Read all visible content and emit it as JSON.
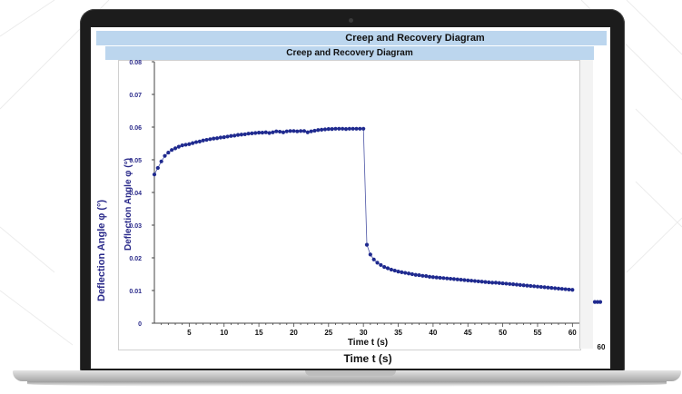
{
  "window_outer": {
    "title": "Creep and Recovery Diagram",
    "ylabel": "Deflection  Angle φ (°)",
    "xlabel": "Time t (s)",
    "xtick_visible": "60"
  },
  "window_inner": {
    "title": "Creep and Recovery Diagram",
    "ylabel": "Deflection  Angle φ (°)",
    "xlabel": "Time t (s)"
  },
  "chart_data": {
    "type": "scatter",
    "title": "Creep and Recovery Diagram",
    "xlabel": "Time t (s)",
    "ylabel": "Deflection  Angle φ (°)",
    "xlim": [
      0,
      61
    ],
    "ylim": [
      0,
      0.08
    ],
    "xticks": [
      5,
      10,
      15,
      20,
      25,
      30,
      35,
      40,
      45,
      50,
      55,
      60
    ],
    "yticks": [
      "0",
      "0.01",
      "0.02",
      "0.03",
      "0.04",
      "0.05",
      "0.06",
      "0.07",
      "0.08"
    ],
    "marker_color": "#1f2a8f",
    "series": [
      {
        "x": [
          0.0,
          0.5,
          1.0,
          1.5,
          2.0,
          2.5,
          3.0,
          3.5,
          4.0,
          4.5,
          5.0,
          5.5,
          6.0,
          6.5,
          7.0,
          7.5,
          8.0,
          8.5,
          9.0,
          9.5,
          10.0,
          10.5,
          11.0,
          11.5,
          12.0,
          12.5,
          13.0,
          13.5,
          14.0,
          14.5,
          15.0,
          15.5,
          16.0,
          16.5,
          17.0,
          17.5,
          18.0,
          18.5,
          19.0,
          19.5,
          20.0,
          20.5,
          21.0,
          21.5,
          22.0,
          22.5,
          23.0,
          23.5,
          24.0,
          24.5,
          25.0,
          25.5,
          26.0,
          26.5,
          27.0,
          27.5,
          28.0,
          28.5,
          29.0,
          29.5,
          30.0,
          30.5,
          31.0,
          31.5,
          32.0,
          32.5,
          33.0,
          33.5,
          34.0,
          34.5,
          35.0,
          35.5,
          36.0,
          36.5,
          37.0,
          37.5,
          38.0,
          38.5,
          39.0,
          39.5,
          40.0,
          40.5,
          41.0,
          41.5,
          42.0,
          42.5,
          43.0,
          43.5,
          44.0,
          44.5,
          45.0,
          45.5,
          46.0,
          46.5,
          47.0,
          47.5,
          48.0,
          48.5,
          49.0,
          49.5,
          50.0,
          50.5,
          51.0,
          51.5,
          52.0,
          52.5,
          53.0,
          53.5,
          54.0,
          54.5,
          55.0,
          55.5,
          56.0,
          56.5,
          57.0,
          57.5,
          58.0,
          58.5,
          59.0,
          59.5,
          60.0
        ],
        "y": [
          0.0455,
          0.0475,
          0.0495,
          0.0512,
          0.0522,
          0.053,
          0.0535,
          0.054,
          0.0544,
          0.0546,
          0.0548,
          0.0551,
          0.0554,
          0.0556,
          0.0559,
          0.0561,
          0.0563,
          0.0565,
          0.0566,
          0.0568,
          0.0569,
          0.0571,
          0.0573,
          0.0574,
          0.0576,
          0.0577,
          0.0578,
          0.058,
          0.0581,
          0.0582,
          0.0583,
          0.0583,
          0.0584,
          0.0582,
          0.0584,
          0.0587,
          0.0586,
          0.0584,
          0.0587,
          0.0588,
          0.0588,
          0.0587,
          0.0588,
          0.0588,
          0.0584,
          0.0587,
          0.0589,
          0.0591,
          0.0592,
          0.0593,
          0.0594,
          0.0594,
          0.0595,
          0.0595,
          0.0595,
          0.0594,
          0.0595,
          0.0595,
          0.0595,
          0.0595,
          0.0595,
          0.024,
          0.021,
          0.0195,
          0.0185,
          0.0178,
          0.0172,
          0.0168,
          0.0164,
          0.0161,
          0.0158,
          0.0156,
          0.0154,
          0.0152,
          0.015,
          0.0148,
          0.0147,
          0.0145,
          0.0144,
          0.0142,
          0.0141,
          0.014,
          0.0139,
          0.0138,
          0.0137,
          0.0136,
          0.0135,
          0.0134,
          0.0133,
          0.0132,
          0.0131,
          0.013,
          0.0129,
          0.0128,
          0.0127,
          0.0126,
          0.0125,
          0.0124,
          0.0124,
          0.0123,
          0.0122,
          0.0121,
          0.012,
          0.0119,
          0.0118,
          0.0117,
          0.0116,
          0.0115,
          0.0114,
          0.0113,
          0.0112,
          0.0111,
          0.011,
          0.0109,
          0.0108,
          0.0107,
          0.0106,
          0.0105,
          0.0104,
          0.0103,
          0.0102
        ]
      }
    ],
    "outer_tail_points": {
      "x": [
        62.0,
        62.5,
        63.0
      ],
      "y": [
        0.0065,
        0.0065,
        0.0065
      ]
    }
  }
}
